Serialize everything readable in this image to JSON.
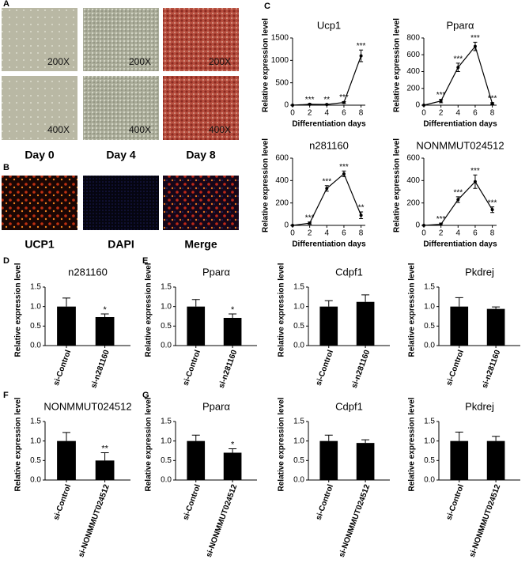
{
  "figure": {
    "panel_labels": [
      "A",
      "B",
      "C",
      "D",
      "E",
      "F",
      "G"
    ],
    "magnifications": [
      "200X",
      "200X",
      "200X",
      "400X",
      "400X",
      "400X"
    ],
    "days": [
      "Day 0",
      "Day 4",
      "Day 8"
    ],
    "stains": [
      "UCP1",
      "DAPI",
      "Merge"
    ]
  },
  "chart_data": [
    {
      "type": "line",
      "title": "Ucp1",
      "x_label": "Differentiation days",
      "y_label": "Relative expression level",
      "color": "#000000",
      "x": [
        0,
        2,
        4,
        6,
        8
      ],
      "values": [
        0,
        20,
        15,
        60,
        1100
      ],
      "errors": [
        0,
        10,
        10,
        20,
        130
      ],
      "annotations": [
        null,
        "***",
        "**",
        "***",
        "***"
      ],
      "xlim": [
        0,
        8.5
      ],
      "xticks": [
        0,
        2,
        4,
        6,
        8
      ],
      "ylim": [
        0,
        1500
      ],
      "yticks": [
        0,
        500,
        1000,
        1500
      ]
    },
    {
      "type": "line",
      "title": "Pparα",
      "x_label": "Differentiation days",
      "y_label": "Relative expression level",
      "color": "#000000",
      "x": [
        0,
        2,
        4,
        6,
        8
      ],
      "values": [
        0,
        50,
        450,
        700,
        20
      ],
      "errors": [
        0,
        20,
        50,
        50,
        10
      ],
      "annotations": [
        null,
        "***",
        "***",
        "***",
        "***"
      ],
      "xlim": [
        0,
        8.5
      ],
      "xticks": [
        0,
        2,
        4,
        6,
        8
      ],
      "ylim": [
        0,
        800
      ],
      "yticks": [
        0,
        200,
        400,
        600,
        800
      ]
    },
    {
      "type": "line",
      "title": "n281160",
      "x_label": "Differentiation days",
      "y_label": "Relative expression level",
      "color": "#000000",
      "x": [
        0,
        2,
        4,
        6,
        8
      ],
      "values": [
        0,
        20,
        330,
        460,
        90
      ],
      "errors": [
        0,
        10,
        25,
        25,
        30
      ],
      "annotations": [
        null,
        "***",
        "***",
        "***",
        "**"
      ],
      "xlim": [
        0,
        8.5
      ],
      "xticks": [
        0,
        2,
        4,
        6,
        8
      ],
      "ylim": [
        0,
        600
      ],
      "yticks": [
        0,
        200,
        400,
        600
      ]
    },
    {
      "type": "line",
      "title": "NONMMUT024512",
      "x_label": "Differentiation days",
      "y_label": "Relative expression level",
      "color": "#000000",
      "x": [
        0,
        2,
        4,
        6,
        8
      ],
      "values": [
        0,
        10,
        230,
        390,
        140
      ],
      "errors": [
        0,
        10,
        25,
        60,
        25
      ],
      "annotations": [
        null,
        "***",
        "***",
        "***",
        "***"
      ],
      "xlim": [
        0,
        8.5
      ],
      "xticks": [
        0,
        2,
        4,
        6,
        8
      ],
      "ylim": [
        0,
        600
      ],
      "yticks": [
        0,
        200,
        400,
        600
      ]
    },
    {
      "type": "bar",
      "title": "n281160",
      "y_label": "Relative expression level",
      "color": "#000000",
      "categories": [
        "si-Control",
        "si-n281160"
      ],
      "values": [
        1.0,
        0.73
      ],
      "errors": [
        0.22,
        0.08
      ],
      "annotations": [
        null,
        "*"
      ],
      "ylim": [
        0,
        1.5
      ],
      "yticks": [
        {
          "value": 0,
          "label": "0.0"
        },
        {
          "value": 0.5,
          "label": "0.5"
        },
        {
          "value": 1,
          "label": "1.0"
        },
        {
          "value": 1.5,
          "label": "1.5"
        }
      ]
    },
    {
      "type": "bar",
      "title": "Pparα",
      "y_label": "Relative expression level",
      "color": "#000000",
      "categories": [
        "si-Control",
        "si-n281160"
      ],
      "values": [
        1.0,
        0.71
      ],
      "errors": [
        0.18,
        0.1
      ],
      "annotations": [
        null,
        "*"
      ],
      "ylim": [
        0,
        1.5
      ],
      "yticks": [
        {
          "value": 0,
          "label": "0.0"
        },
        {
          "value": 0.5,
          "label": "0.5"
        },
        {
          "value": 1,
          "label": "1.0"
        },
        {
          "value": 1.5,
          "label": "1.5"
        }
      ]
    },
    {
      "type": "bar",
      "title": "Cdpf1",
      "y_label": "Relative expression level",
      "color": "#000000",
      "categories": [
        "si-Control",
        "si-n281160"
      ],
      "values": [
        1.0,
        1.12
      ],
      "errors": [
        0.15,
        0.18
      ],
      "annotations": [
        null,
        null
      ],
      "ylim": [
        0,
        1.5
      ],
      "yticks": [
        {
          "value": 0,
          "label": "0.0"
        },
        {
          "value": 0.5,
          "label": "0.5"
        },
        {
          "value": 1,
          "label": "1.0"
        },
        {
          "value": 1.5,
          "label": "1.5"
        }
      ]
    },
    {
      "type": "bar",
      "title": "Pkdrej",
      "y_label": "Relative expression level",
      "color": "#000000",
      "categories": [
        "si-Control",
        "si-n281160"
      ],
      "values": [
        1.0,
        0.94
      ],
      "errors": [
        0.23,
        0.05
      ],
      "annotations": [
        null,
        null
      ],
      "ylim": [
        0,
        1.5
      ],
      "yticks": [
        {
          "value": 0,
          "label": "0.0"
        },
        {
          "value": 0.5,
          "label": "0.5"
        },
        {
          "value": 1,
          "label": "1.0"
        },
        {
          "value": 1.5,
          "label": "1.5"
        }
      ]
    },
    {
      "type": "bar",
      "title": "NONMMUT024512",
      "y_label": "Relative expression level",
      "color": "#000000",
      "categories": [
        "si-Control",
        "si-NONMMUT024512"
      ],
      "values": [
        1.0,
        0.5
      ],
      "errors": [
        0.22,
        0.2
      ],
      "annotations": [
        null,
        "**"
      ],
      "ylim": [
        0,
        1.5
      ],
      "yticks": [
        {
          "value": 0,
          "label": "0.0"
        },
        {
          "value": 0.5,
          "label": "0.5"
        },
        {
          "value": 1,
          "label": "1.0"
        },
        {
          "value": 1.5,
          "label": "1.5"
        }
      ]
    },
    {
      "type": "bar",
      "title": "Pparα",
      "y_label": "Relative expression level",
      "color": "#000000",
      "categories": [
        "si-Control",
        "si-NONMMUT024512"
      ],
      "values": [
        1.0,
        0.7
      ],
      "errors": [
        0.15,
        0.1
      ],
      "annotations": [
        null,
        "*"
      ],
      "ylim": [
        0,
        1.5
      ],
      "yticks": [
        {
          "value": 0,
          "label": "0.0"
        },
        {
          "value": 0.5,
          "label": "0.5"
        },
        {
          "value": 1,
          "label": "1.0"
        },
        {
          "value": 1.5,
          "label": "1.5"
        }
      ]
    },
    {
      "type": "bar",
      "title": "Cdpf1",
      "y_label": "Relative expression level",
      "color": "#000000",
      "categories": [
        "si-Control",
        "si-NONMMUT024512"
      ],
      "values": [
        1.0,
        0.95
      ],
      "errors": [
        0.15,
        0.08
      ],
      "annotations": [
        null,
        null
      ],
      "ylim": [
        0,
        1.5
      ],
      "yticks": [
        {
          "value": 0,
          "label": "0.0"
        },
        {
          "value": 0.5,
          "label": "0.5"
        },
        {
          "value": 1,
          "label": "1.0"
        },
        {
          "value": 1.5,
          "label": "1.5"
        }
      ]
    },
    {
      "type": "bar",
      "title": "Pkdrej",
      "y_label": "Relative expression level",
      "color": "#000000",
      "categories": [
        "si-Control",
        "si-NONMMUT024512"
      ],
      "values": [
        1.0,
        1.0
      ],
      "errors": [
        0.23,
        0.12
      ],
      "annotations": [
        null,
        null
      ],
      "ylim": [
        0,
        1.5
      ],
      "yticks": [
        {
          "value": 0,
          "label": "0.0"
        },
        {
          "value": 0.5,
          "label": "0.5"
        },
        {
          "value": 1,
          "label": "1.0"
        },
        {
          "value": 1.5,
          "label": "1.5"
        }
      ]
    }
  ]
}
